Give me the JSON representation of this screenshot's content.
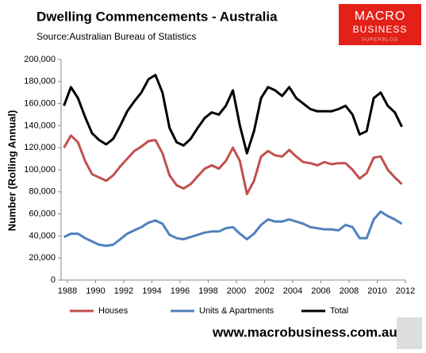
{
  "chart_data": {
    "type": "line",
    "title": "Dwelling Commencements - Australia",
    "subtitle": "Source:Australian Bureau of Statistics",
    "y_label": "Number (Rolling Annual)",
    "x": [
      1987.75,
      1988.25,
      1988.75,
      1989.25,
      1989.75,
      1990.25,
      1990.75,
      1991.25,
      1991.75,
      1992.25,
      1992.75,
      1993.25,
      1993.75,
      1994.25,
      1994.75,
      1995.25,
      1995.75,
      1996.25,
      1996.75,
      1997.25,
      1997.75,
      1998.25,
      1998.75,
      1999.25,
      1999.75,
      2000.25,
      2000.75,
      2001.25,
      2001.75,
      2002.25,
      2002.75,
      2003.25,
      2003.75,
      2004.25,
      2004.75,
      2005.25,
      2005.75,
      2006.25,
      2006.75,
      2007.25,
      2007.75,
      2008.25,
      2008.75,
      2009.25,
      2009.75,
      2010.25,
      2010.75,
      2011.25,
      2011.75
    ],
    "series": [
      {
        "name": "Houses",
        "color": "#c0504d",
        "values": [
          120000,
          131000,
          125000,
          108000,
          96000,
          93000,
          90000,
          95000,
          103000,
          110000,
          117000,
          121000,
          126000,
          127000,
          115000,
          95000,
          86000,
          83000,
          87000,
          94000,
          101000,
          104000,
          101000,
          108000,
          120000,
          108000,
          78000,
          90000,
          112000,
          117000,
          113000,
          112000,
          118000,
          112000,
          107000,
          106000,
          104000,
          107000,
          105000,
          106000,
          106000,
          100000,
          92000,
          97000,
          111000,
          112000,
          100000,
          93000,
          87000
        ]
      },
      {
        "name": "Units & Apartments",
        "color": "#4f81bd",
        "values": [
          39000,
          42000,
          42000,
          38000,
          35000,
          32000,
          31000,
          32000,
          37000,
          42000,
          45000,
          48000,
          52000,
          54000,
          51000,
          41000,
          38000,
          37000,
          39000,
          41000,
          43000,
          44000,
          44000,
          47000,
          48000,
          42000,
          37000,
          42000,
          50000,
          55000,
          53000,
          53000,
          55000,
          53000,
          51000,
          48000,
          47000,
          46000,
          46000,
          45000,
          50000,
          48000,
          38000,
          38000,
          55000,
          62000,
          58000,
          55000,
          51000
        ]
      },
      {
        "name": "Total",
        "color": "#000000",
        "values": [
          158000,
          175000,
          165000,
          148000,
          133000,
          127000,
          123000,
          128000,
          140000,
          153000,
          162000,
          170000,
          182000,
          186000,
          170000,
          138000,
          125000,
          122000,
          128000,
          138000,
          147000,
          152000,
          150000,
          158000,
          172000,
          140000,
          115000,
          135000,
          165000,
          175000,
          172000,
          167000,
          175000,
          165000,
          160000,
          155000,
          153000,
          153000,
          153000,
          155000,
          158000,
          150000,
          132000,
          135000,
          165000,
          170000,
          158000,
          152000,
          139000
        ]
      }
    ],
    "xlim": [
      1987.55,
      2012
    ],
    "xticks": [
      1988,
      1990,
      1992,
      1994,
      1996,
      1998,
      2000,
      2002,
      2004,
      2006,
      2008,
      2010,
      2012
    ],
    "ylim": [
      0,
      200000
    ],
    "yticks": [
      0,
      {
        "value": 20000,
        "label": "20,000"
      },
      {
        "value": 40000,
        "label": "40,000"
      },
      {
        "value": 60000,
        "label": "60,000"
      },
      {
        "value": 80000,
        "label": "80,000"
      },
      {
        "value": 100000,
        "label": "100,000"
      },
      {
        "value": 120000,
        "label": "120,000"
      },
      {
        "value": 140000,
        "label": "140,000"
      },
      {
        "value": 160000,
        "label": "160,000"
      },
      {
        "value": 180000,
        "label": "180,000"
      },
      {
        "value": 200000,
        "label": "200,000"
      }
    ],
    "grid": false,
    "legend": "bottom"
  },
  "branding": {
    "logo": [
      "MACRO",
      "BUSINESS",
      "SUPERBLOG"
    ],
    "url": "www.macrobusiness.com.au"
  }
}
